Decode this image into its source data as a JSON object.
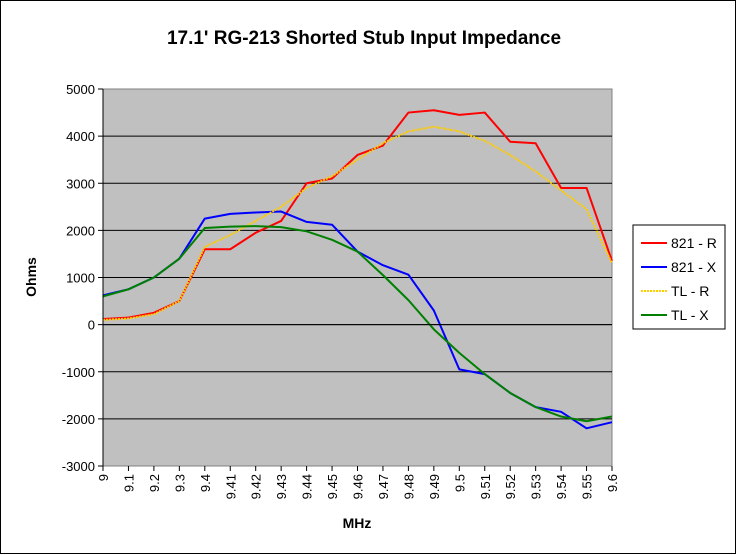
{
  "chart_data": {
    "type": "line",
    "title": "17.1' RG-213 Shorted Stub Input Impedance",
    "xlabel": "MHz",
    "ylabel": "Ohms",
    "ylim": [
      -3000,
      5000
    ],
    "yticks": [
      5000,
      4000,
      3000,
      2000,
      1000,
      0,
      -1000,
      -2000,
      -3000
    ],
    "categories": [
      "9",
      "9.1",
      "9.2",
      "9.3",
      "9.4",
      "9.41",
      "9.42",
      "9.43",
      "9.44",
      "9.45",
      "9.46",
      "9.47",
      "9.48",
      "9.49",
      "9.5",
      "9.51",
      "9.52",
      "9.53",
      "9.54",
      "9.55",
      "9.6"
    ],
    "grid": true,
    "plot_background": "#c0c0c0",
    "legend_position": "right",
    "series": [
      {
        "name": "821 - R",
        "color": "#ff0000",
        "values": [
          120,
          150,
          250,
          500,
          1600,
          1600,
          1950,
          2200,
          3000,
          3100,
          3600,
          3800,
          4500,
          4550,
          4450,
          4500,
          3880,
          3850,
          2900,
          2900,
          1350
        ]
      },
      {
        "name": "821 - X",
        "color": "#0000ff",
        "values": [
          620,
          750,
          1000,
          1400,
          2250,
          2350,
          2380,
          2400,
          2180,
          2120,
          1550,
          1260,
          1060,
          300,
          -950,
          -1050,
          -1450,
          -1750,
          -1850,
          -2200,
          -2070
        ]
      },
      {
        "name": "TL - R",
        "color": "#ffcc00",
        "values": [
          100,
          130,
          220,
          500,
          1650,
          1900,
          2200,
          2500,
          2900,
          3150,
          3500,
          3850,
          4100,
          4200,
          4100,
          3900,
          3600,
          3250,
          2850,
          2450,
          1300
        ]
      },
      {
        "name": "TL - X",
        "color": "#008000",
        "values": [
          600,
          750,
          1000,
          1400,
          2050,
          2080,
          2090,
          2070,
          1980,
          1800,
          1550,
          1050,
          520,
          -100,
          -600,
          -1050,
          -1450,
          -1750,
          -1950,
          -2050,
          -1950
        ]
      }
    ]
  }
}
